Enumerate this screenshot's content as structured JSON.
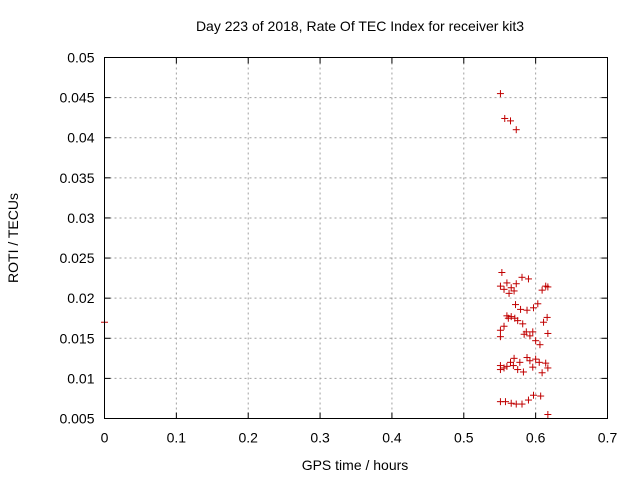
{
  "chart_data": {
    "type": "scatter",
    "title": "Day 223 of 2018, Rate Of TEC Index for receiver kit3",
    "xlabel": "GPS time / hours",
    "ylabel": "ROTI / TECUs",
    "xlim": [
      0,
      0.7
    ],
    "ylim": [
      0.005,
      0.05
    ],
    "xticks": [
      0,
      0.1,
      0.2,
      0.3,
      0.4,
      0.5,
      0.6,
      0.7
    ],
    "xtick_labels": [
      "0",
      "0.1",
      "0.2",
      "0.3",
      "0.4",
      "0.5",
      "0.6",
      "0.7"
    ],
    "yticks": [
      0.005,
      0.01,
      0.015,
      0.02,
      0.025,
      0.03,
      0.035,
      0.04,
      0.045,
      0.05
    ],
    "ytick_labels": [
      "0.005",
      "0.01",
      "0.015",
      "0.02",
      "0.025",
      "0.03",
      "0.035",
      "0.04",
      "0.045",
      "0.05"
    ],
    "grid": true,
    "marker": "plus",
    "color": "#c00000",
    "series": [
      {
        "name": "kit3",
        "points": [
          [
            0.0,
            0.017
          ],
          [
            0.551,
            0.0455
          ],
          [
            0.557,
            0.0424
          ],
          [
            0.565,
            0.0421
          ],
          [
            0.573,
            0.041
          ],
          [
            0.553,
            0.0232
          ],
          [
            0.56,
            0.0219
          ],
          [
            0.566,
            0.0213
          ],
          [
            0.573,
            0.0218
          ],
          [
            0.581,
            0.0226
          ],
          [
            0.59,
            0.0224
          ],
          [
            0.551,
            0.0215
          ],
          [
            0.556,
            0.0211
          ],
          [
            0.563,
            0.0206
          ],
          [
            0.57,
            0.0209
          ],
          [
            0.579,
            0.0186
          ],
          [
            0.588,
            0.0185
          ],
          [
            0.597,
            0.0188
          ],
          [
            0.603,
            0.0193
          ],
          [
            0.609,
            0.021
          ],
          [
            0.614,
            0.0215
          ],
          [
            0.617,
            0.0214
          ],
          [
            0.572,
            0.0192
          ],
          [
            0.551,
            0.016
          ],
          [
            0.556,
            0.0165
          ],
          [
            0.562,
            0.0175
          ],
          [
            0.566,
            0.0177
          ],
          [
            0.571,
            0.0175
          ],
          [
            0.575,
            0.0172
          ],
          [
            0.582,
            0.0168
          ],
          [
            0.587,
            0.0158
          ],
          [
            0.592,
            0.0153
          ],
          [
            0.596,
            0.0158
          ],
          [
            0.6,
            0.0147
          ],
          [
            0.606,
            0.0142
          ],
          [
            0.611,
            0.017
          ],
          [
            0.616,
            0.0176
          ],
          [
            0.617,
            0.0156
          ],
          [
            0.551,
            0.0152
          ],
          [
            0.56,
            0.0178
          ],
          [
            0.584,
            0.0155
          ],
          [
            0.551,
            0.0116
          ],
          [
            0.556,
            0.0113
          ],
          [
            0.56,
            0.0115
          ],
          [
            0.565,
            0.012
          ],
          [
            0.569,
            0.0116
          ],
          [
            0.575,
            0.0111
          ],
          [
            0.578,
            0.012
          ],
          [
            0.583,
            0.0108
          ],
          [
            0.588,
            0.0126
          ],
          [
            0.592,
            0.0122
          ],
          [
            0.596,
            0.0114
          ],
          [
            0.6,
            0.0124
          ],
          [
            0.605,
            0.012
          ],
          [
            0.609,
            0.0107
          ],
          [
            0.614,
            0.0119
          ],
          [
            0.617,
            0.0113
          ],
          [
            0.551,
            0.0111
          ],
          [
            0.57,
            0.0125
          ],
          [
            0.551,
            0.0071
          ],
          [
            0.558,
            0.0071
          ],
          [
            0.566,
            0.0069
          ],
          [
            0.573,
            0.0068
          ],
          [
            0.581,
            0.0068
          ],
          [
            0.59,
            0.0073
          ],
          [
            0.597,
            0.0079
          ],
          [
            0.607,
            0.0078
          ],
          [
            0.617,
            0.0055
          ]
        ]
      }
    ]
  }
}
